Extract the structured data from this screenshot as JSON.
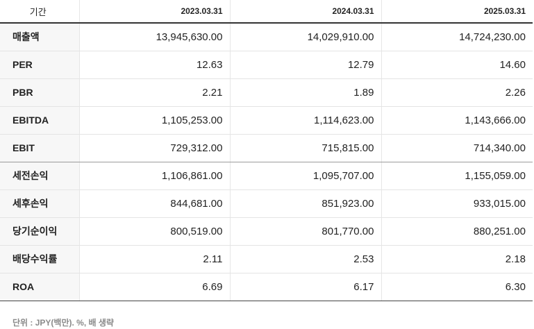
{
  "header": {
    "label": "기간",
    "periods": [
      "2023.03.31",
      "2024.03.31",
      "2025.03.31"
    ]
  },
  "rows": [
    {
      "label": "매출액",
      "values": [
        "13,945,630.00",
        "14,029,910.00",
        "14,724,230.00"
      ]
    },
    {
      "label": "PER",
      "values": [
        "12.63",
        "12.79",
        "14.60"
      ]
    },
    {
      "label": "PBR",
      "values": [
        "2.21",
        "1.89",
        "2.26"
      ]
    },
    {
      "label": "EBITDA",
      "values": [
        "1,105,253.00",
        "1,114,623.00",
        "1,143,666.00"
      ]
    },
    {
      "label": "EBIT",
      "values": [
        "729,312.00",
        "715,815.00",
        "714,340.00"
      ]
    },
    {
      "label": "세전손익",
      "values": [
        "1,106,861.00",
        "1,095,707.00",
        "1,155,059.00"
      ]
    },
    {
      "label": "세후손익",
      "values": [
        "844,681.00",
        "851,923.00",
        "933,015.00"
      ]
    },
    {
      "label": "당기순이익",
      "values": [
        "800,519.00",
        "801,770.00",
        "880,251.00"
      ]
    },
    {
      "label": "배당수익률",
      "values": [
        "2.11",
        "2.53",
        "2.18"
      ]
    },
    {
      "label": "ROA",
      "values": [
        "6.69",
        "6.17",
        "6.30"
      ]
    }
  ],
  "footnote": "단위 : JPY(백만). %, 배 생략"
}
